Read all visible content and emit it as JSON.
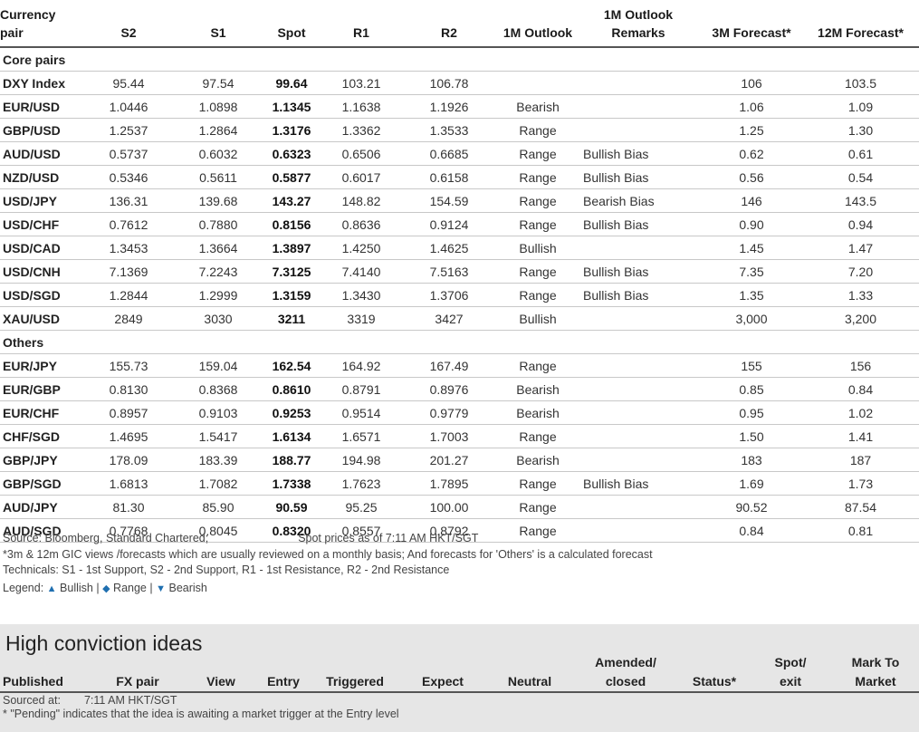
{
  "table": {
    "headers": {
      "pair": "Currency pair",
      "s2": "S2",
      "s1": "S1",
      "spot": "Spot",
      "r1": "R1",
      "r2": "R2",
      "outlook": "1M Outlook",
      "remarks": "1M Outlook Remarks",
      "f3m": "3M Forecast*",
      "f12m": "12M Forecast*"
    },
    "sections": [
      {
        "title": "Core pairs",
        "rows": [
          {
            "pair": "DXY Index",
            "s2": "95.44",
            "s1": "97.54",
            "spot": "99.64",
            "r1": "103.21",
            "r2": "106.78",
            "outlook": "",
            "outlook_class": "",
            "remarks": "",
            "f3m": "106",
            "f12m": "103.5"
          },
          {
            "pair": "EUR/USD",
            "s2": "1.0446",
            "s1": "1.0898",
            "spot": "1.1345",
            "r1": "1.1638",
            "r2": "1.1926",
            "outlook": "Bearish",
            "outlook_class": "bearish",
            "remarks": "",
            "f3m": "1.06",
            "f12m": "1.09"
          },
          {
            "pair": "GBP/USD",
            "s2": "1.2537",
            "s1": "1.2864",
            "spot": "1.3176",
            "r1": "1.3362",
            "r2": "1.3533",
            "outlook": "Range",
            "outlook_class": "range",
            "remarks": "",
            "f3m": "1.25",
            "f12m": "1.30"
          },
          {
            "pair": "AUD/USD",
            "s2": "0.5737",
            "s1": "0.6032",
            "spot": "0.6323",
            "r1": "0.6506",
            "r2": "0.6685",
            "outlook": "Range",
            "outlook_class": "range",
            "remarks": "Bullish Bias",
            "f3m": "0.62",
            "f12m": "0.61"
          },
          {
            "pair": "NZD/USD",
            "s2": "0.5346",
            "s1": "0.5611",
            "spot": "0.5877",
            "r1": "0.6017",
            "r2": "0.6158",
            "outlook": "Range",
            "outlook_class": "range",
            "remarks": "Bullish Bias",
            "f3m": "0.56",
            "f12m": "0.54"
          },
          {
            "pair": "USD/JPY",
            "s2": "136.31",
            "s1": "139.68",
            "spot": "143.27",
            "r1": "148.82",
            "r2": "154.59",
            "outlook": "Range",
            "outlook_class": "range",
            "remarks": "Bearish Bias",
            "f3m": "146",
            "f12m": "143.5"
          },
          {
            "pair": "USD/CHF",
            "s2": "0.7612",
            "s1": "0.7880",
            "spot": "0.8156",
            "r1": "0.8636",
            "r2": "0.9124",
            "outlook": "Range",
            "outlook_class": "range",
            "remarks": "Bullish Bias",
            "f3m": "0.90",
            "f12m": "0.94"
          },
          {
            "pair": "USD/CAD",
            "s2": "1.3453",
            "s1": "1.3664",
            "spot": "1.3897",
            "r1": "1.4250",
            "r2": "1.4625",
            "outlook": "Bullish",
            "outlook_class": "bullish",
            "remarks": "",
            "f3m": "1.45",
            "f12m": "1.47"
          },
          {
            "pair": "USD/CNH",
            "s2": "7.1369",
            "s1": "7.2243",
            "spot": "7.3125",
            "r1": "7.4140",
            "r2": "7.5163",
            "outlook": "Range",
            "outlook_class": "range",
            "remarks": "Bullish Bias",
            "f3m": "7.35",
            "f12m": "7.20"
          },
          {
            "pair": "USD/SGD",
            "s2": "1.2844",
            "s1": "1.2999",
            "spot": "1.3159",
            "r1": "1.3430",
            "r2": "1.3706",
            "outlook": "Range",
            "outlook_class": "range",
            "remarks": "Bullish Bias",
            "f3m": "1.35",
            "f12m": "1.33"
          },
          {
            "pair": "XAU/USD",
            "s2": "2849",
            "s1": "3030",
            "spot": "3211",
            "r1": "3319",
            "r2": "3427",
            "outlook": "Bullish",
            "outlook_class": "bullish",
            "remarks": "",
            "f3m": "3,000",
            "f12m": "3,200"
          }
        ]
      },
      {
        "title": "Others",
        "rows": [
          {
            "pair": "EUR/JPY",
            "s2": "155.73",
            "s1": "159.04",
            "spot": "162.54",
            "r1": "164.92",
            "r2": "167.49",
            "outlook": "Range",
            "outlook_class": "range",
            "remarks": "",
            "f3m": "155",
            "f12m": "156"
          },
          {
            "pair": "EUR/GBP",
            "s2": "0.8130",
            "s1": "0.8368",
            "spot": "0.8610",
            "r1": "0.8791",
            "r2": "0.8976",
            "outlook": "Bearish",
            "outlook_class": "bearish",
            "remarks": "",
            "f3m": "0.85",
            "f12m": "0.84"
          },
          {
            "pair": "EUR/CHF",
            "s2": "0.8957",
            "s1": "0.9103",
            "spot": "0.9253",
            "r1": "0.9514",
            "r2": "0.9779",
            "outlook": "Bearish",
            "outlook_class": "bearish",
            "remarks": "",
            "f3m": "0.95",
            "f12m": "1.02"
          },
          {
            "pair": "CHF/SGD",
            "s2": "1.4695",
            "s1": "1.5417",
            "spot": "1.6134",
            "r1": "1.6571",
            "r2": "1.7003",
            "outlook": "Range",
            "outlook_class": "range",
            "remarks": "",
            "f3m": "1.50",
            "f12m": "1.41"
          },
          {
            "pair": "GBP/JPY",
            "s2": "178.09",
            "s1": "183.39",
            "spot": "188.77",
            "r1": "194.98",
            "r2": "201.27",
            "outlook": "Bearish",
            "outlook_class": "bearish",
            "remarks": "",
            "f3m": "183",
            "f12m": "187"
          },
          {
            "pair": "GBP/SGD",
            "s2": "1.6813",
            "s1": "1.7082",
            "spot": "1.7338",
            "r1": "1.7623",
            "r2": "1.7895",
            "outlook": "Range",
            "outlook_class": "range",
            "remarks": "Bullish Bias",
            "f3m": "1.69",
            "f12m": "1.73"
          },
          {
            "pair": "AUD/JPY",
            "s2": "81.30",
            "s1": "85.90",
            "spot": "90.59",
            "r1": "95.25",
            "r2": "100.00",
            "outlook": "Range",
            "outlook_class": "range",
            "remarks": "",
            "f3m": "90.52",
            "f12m": "87.54"
          },
          {
            "pair": "AUD/SGD",
            "s2": "0.7768",
            "s1": "0.8045",
            "spot": "0.8320",
            "r1": "0.8557",
            "r2": "0.8792",
            "outlook": "Range",
            "outlook_class": "range",
            "remarks": "",
            "f3m": "0.84",
            "f12m": "0.81"
          }
        ]
      }
    ]
  },
  "notes": {
    "source": "Source: Bloomberg, Standard Chartered;",
    "spot_time": "Spot prices as of 7:11 AM HKT/SGT",
    "forecast_note": "*3m & 12m GIC views /forecasts which are usually reviewed on a monthly basis; And forecasts for 'Others' is a calculated forecast",
    "technicals": "Technicals: S1 - 1st Support, S2 - 2nd Support, R1 - 1st Resistance, R2 - 2nd Resistance",
    "legend_label": "Legend:",
    "legend_bullish": "Bullish",
    "legend_range": "Range",
    "legend_bearish": "Bearish"
  },
  "high_conviction": {
    "title": "High conviction ideas",
    "headers": {
      "published": "Published",
      "fx_pair": "FX pair",
      "view": "View",
      "entry": "Entry",
      "triggered": "Triggered",
      "expect": "Expect",
      "neutral": "Neutral",
      "amended": "Amended/ closed",
      "status": "Status*",
      "spot_exit": "Spot/ exit",
      "mark_to_market": "Mark To Market"
    },
    "sourced_label": "Sourced at:",
    "sourced_time": "7:11 AM HKT/SGT",
    "pending_note": "* \"Pending\" indicates that the idea is awaiting a market trigger at the Entry level"
  }
}
